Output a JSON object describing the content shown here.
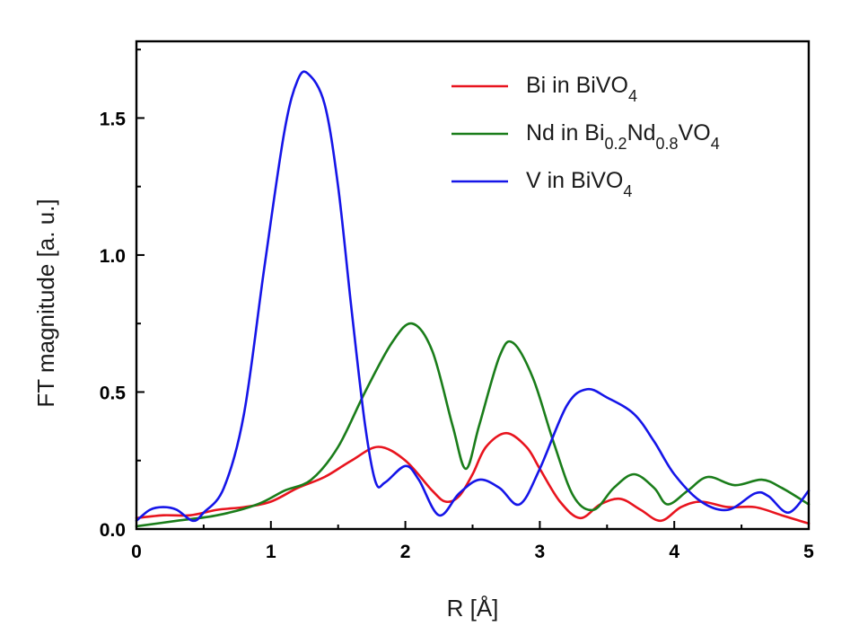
{
  "chart_data": {
    "type": "line",
    "xlabel": "R [Å]",
    "ylabel": "FT magnitude [a. u.]",
    "xlim": [
      0,
      5
    ],
    "ylim": [
      0,
      1.78
    ],
    "xticks": [
      0,
      1,
      2,
      3,
      4,
      5
    ],
    "xtick_labels": [
      "0",
      "1",
      "2",
      "3",
      "4",
      "5"
    ],
    "yticks": [
      0,
      0.5,
      1.0,
      1.5
    ],
    "ytick_labels": [
      "0.0",
      "0.5",
      "1.0",
      "1.5"
    ],
    "grid": false,
    "legend_position": "top-right",
    "series": [
      {
        "name": "Bi in BiVO4",
        "legend_parts": [
          {
            "t": "Bi in BiVO",
            "sub": false
          },
          {
            "t": "4",
            "sub": true
          }
        ],
        "color": "#e8141e",
        "x": [
          0.0,
          0.2,
          0.4,
          0.6,
          0.8,
          1.0,
          1.2,
          1.4,
          1.6,
          1.8,
          2.0,
          2.2,
          2.3,
          2.4,
          2.5,
          2.6,
          2.75,
          2.9,
          3.0,
          3.15,
          3.3,
          3.45,
          3.6,
          3.75,
          3.9,
          4.05,
          4.2,
          4.4,
          4.6,
          4.8,
          5.0
        ],
        "y": [
          0.04,
          0.05,
          0.05,
          0.07,
          0.08,
          0.1,
          0.15,
          0.19,
          0.25,
          0.3,
          0.25,
          0.14,
          0.1,
          0.12,
          0.2,
          0.3,
          0.35,
          0.3,
          0.22,
          0.1,
          0.04,
          0.09,
          0.11,
          0.07,
          0.03,
          0.08,
          0.1,
          0.08,
          0.08,
          0.05,
          0.02
        ]
      },
      {
        "name": "Nd in Bi0.2Nd0.8VO4",
        "legend_parts": [
          {
            "t": "Nd in Bi",
            "sub": false
          },
          {
            "t": "0.2",
            "sub": true
          },
          {
            "t": "Nd",
            "sub": false
          },
          {
            "t": "0.8",
            "sub": true
          },
          {
            "t": "VO",
            "sub": false
          },
          {
            "t": "4",
            "sub": true
          }
        ],
        "color": "#1a7d1a",
        "x": [
          0.0,
          0.3,
          0.6,
          0.9,
          1.1,
          1.3,
          1.5,
          1.7,
          1.9,
          2.05,
          2.2,
          2.35,
          2.45,
          2.55,
          2.7,
          2.8,
          2.95,
          3.1,
          3.25,
          3.4,
          3.55,
          3.7,
          3.85,
          3.95,
          4.1,
          4.25,
          4.45,
          4.65,
          4.8,
          5.0
        ],
        "y": [
          0.01,
          0.03,
          0.05,
          0.09,
          0.14,
          0.18,
          0.3,
          0.5,
          0.68,
          0.75,
          0.65,
          0.38,
          0.22,
          0.38,
          0.63,
          0.68,
          0.55,
          0.32,
          0.12,
          0.07,
          0.15,
          0.2,
          0.15,
          0.09,
          0.14,
          0.19,
          0.16,
          0.18,
          0.15,
          0.09
        ]
      },
      {
        "name": "V in BiVO4",
        "legend_parts": [
          {
            "t": "V in BiVO",
            "sub": false
          },
          {
            "t": "4",
            "sub": true
          }
        ],
        "color": "#1515e8",
        "x": [
          0.0,
          0.1,
          0.2,
          0.3,
          0.42,
          0.5,
          0.65,
          0.8,
          0.95,
          1.1,
          1.2,
          1.28,
          1.4,
          1.5,
          1.6,
          1.7,
          1.78,
          1.85,
          2.0,
          2.1,
          2.25,
          2.4,
          2.55,
          2.7,
          2.85,
          3.0,
          3.2,
          3.35,
          3.5,
          3.7,
          3.85,
          4.0,
          4.2,
          4.4,
          4.6,
          4.7,
          4.85,
          5.0
        ],
        "y": [
          0.03,
          0.07,
          0.08,
          0.07,
          0.03,
          0.06,
          0.15,
          0.42,
          0.95,
          1.45,
          1.64,
          1.66,
          1.55,
          1.25,
          0.8,
          0.38,
          0.17,
          0.17,
          0.23,
          0.18,
          0.05,
          0.13,
          0.18,
          0.15,
          0.09,
          0.22,
          0.45,
          0.51,
          0.48,
          0.42,
          0.32,
          0.2,
          0.1,
          0.07,
          0.13,
          0.12,
          0.06,
          0.14
        ]
      }
    ]
  }
}
